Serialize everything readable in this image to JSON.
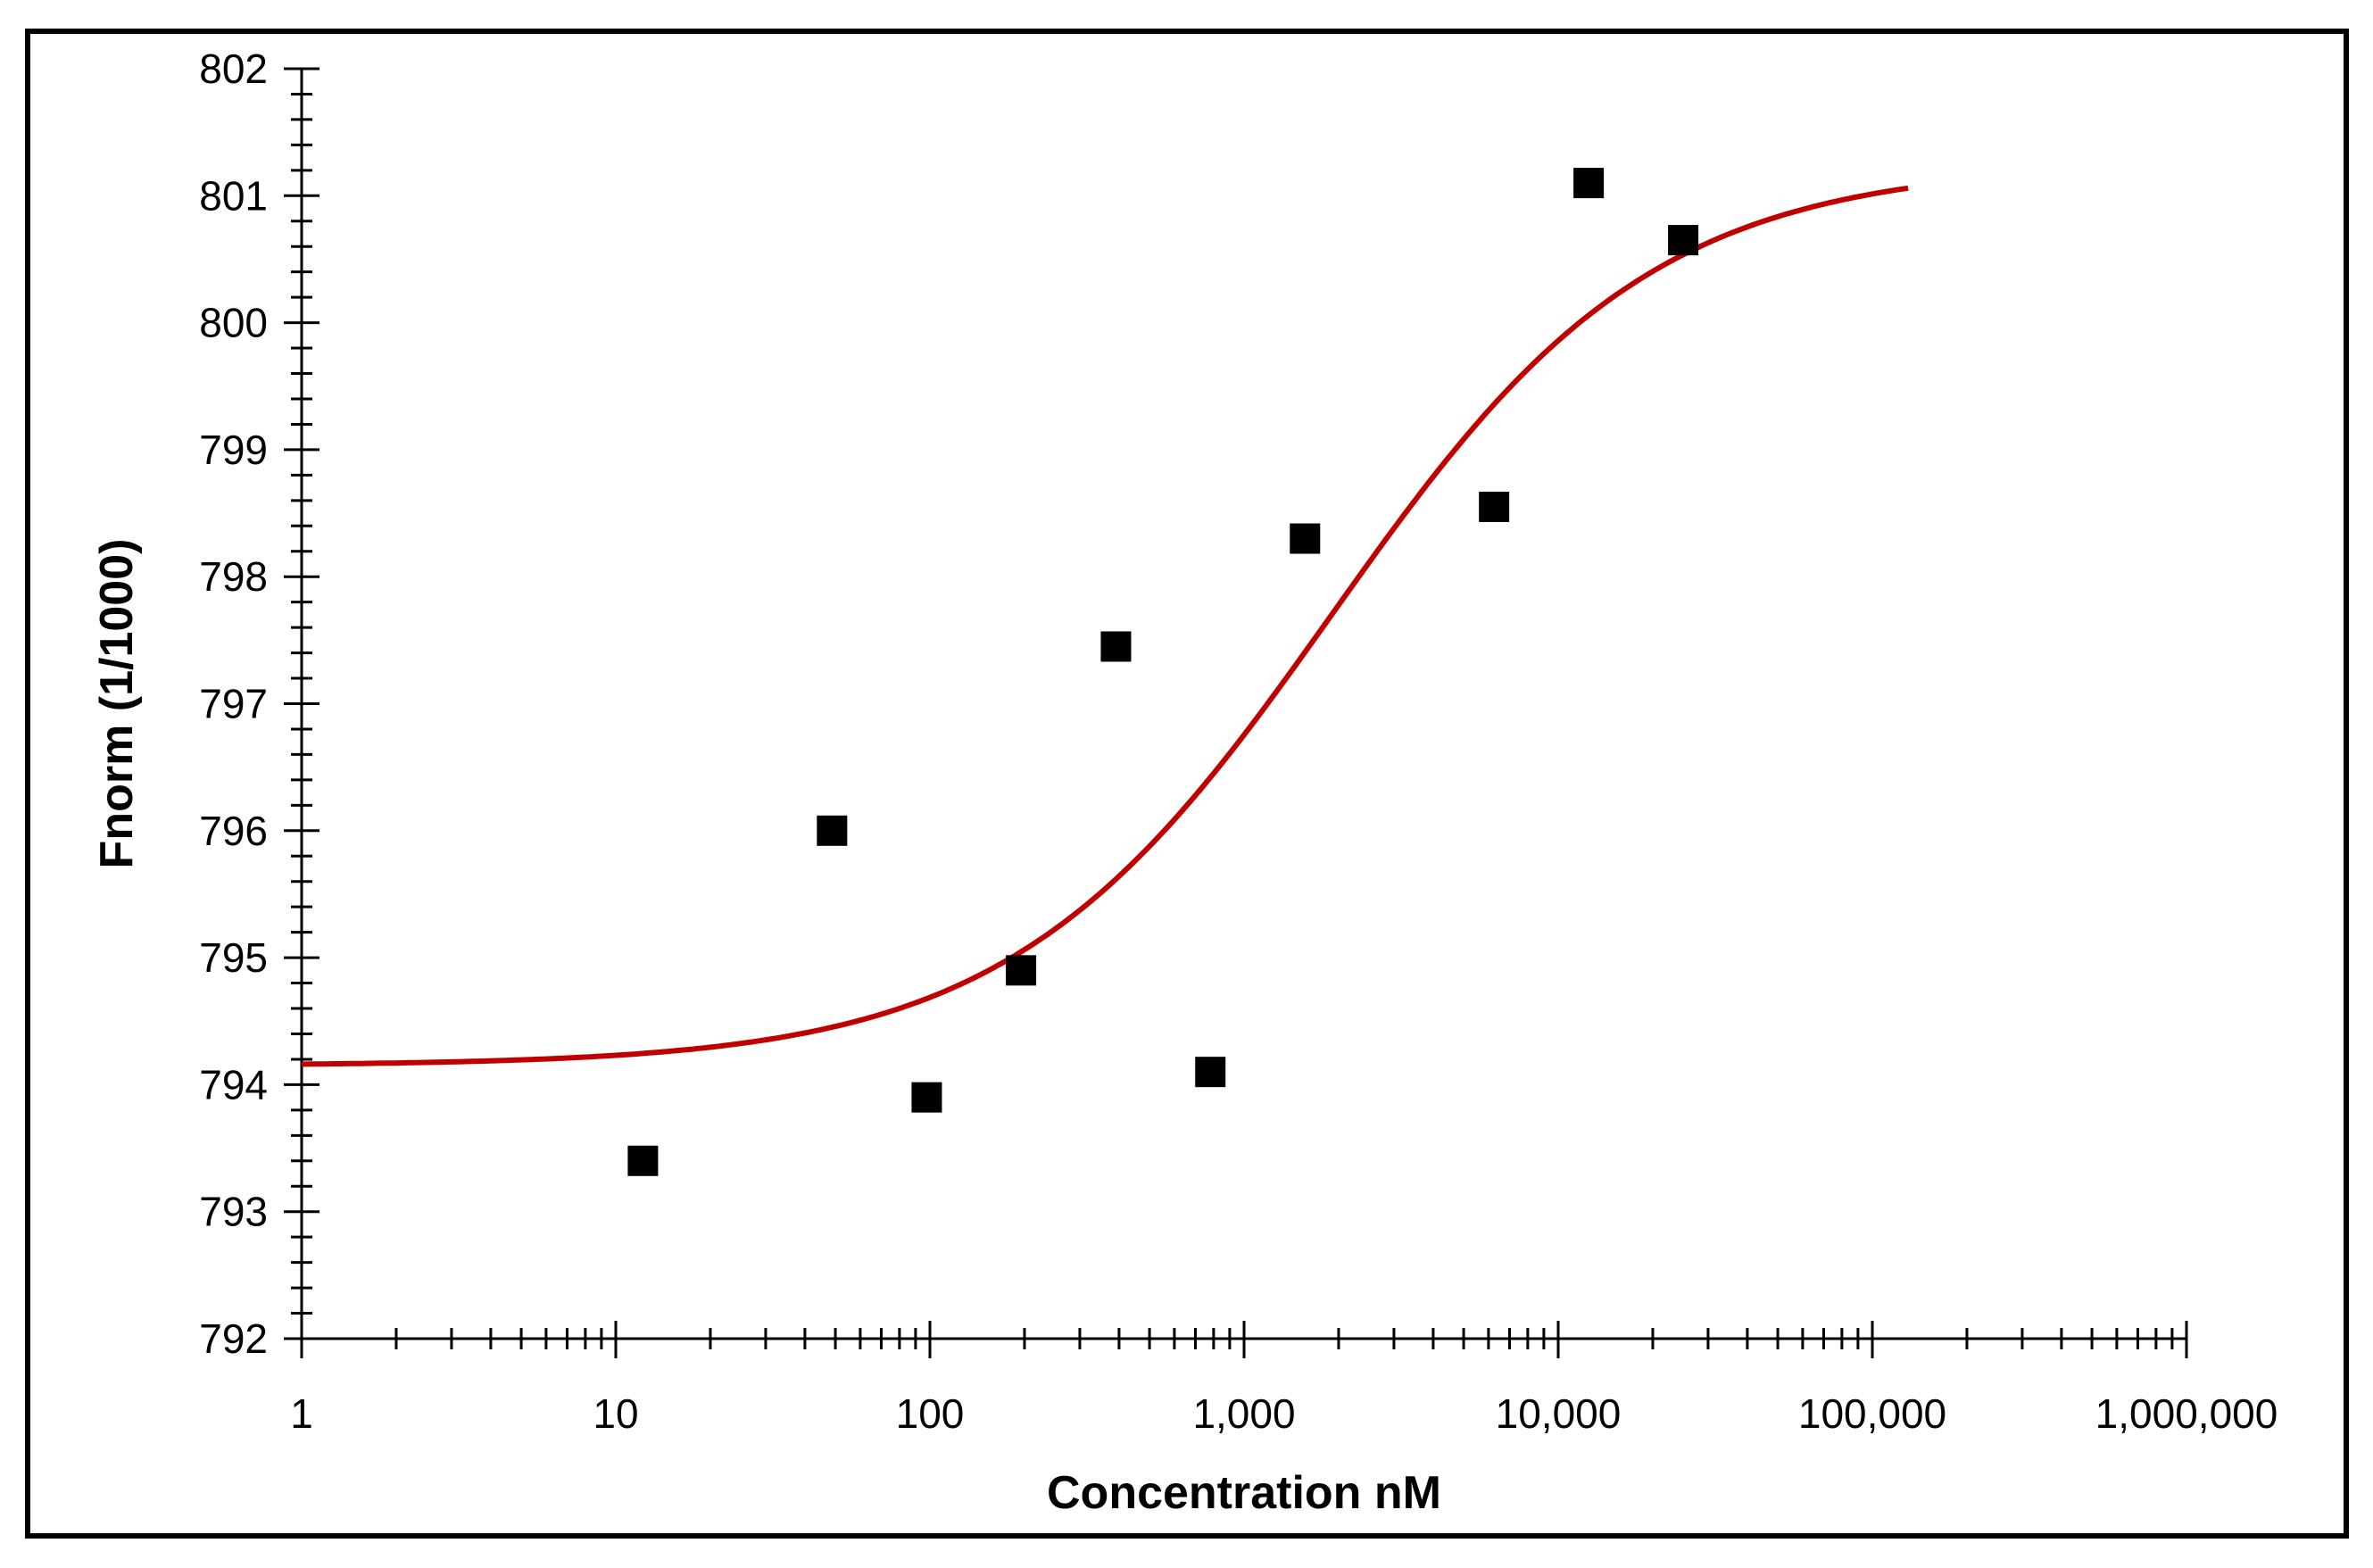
{
  "chart_data": {
    "type": "scatter",
    "title": "",
    "xlabel": "Concentration nM",
    "ylabel": "Fnorm (1/1000)",
    "x_scale": "log",
    "xlim": [
      1,
      1000000
    ],
    "ylim": [
      792,
      802
    ],
    "x_ticks": [
      1,
      10,
      100,
      1000,
      10000,
      100000,
      1000000
    ],
    "x_tick_labels": [
      "1",
      "10",
      "100",
      "1,000",
      "10,000",
      "100,000",
      "1,000,000"
    ],
    "y_ticks": [
      792,
      793,
      794,
      795,
      796,
      797,
      798,
      799,
      800,
      801,
      802
    ],
    "y_tick_labels": [
      "792",
      "793",
      "794",
      "795",
      "796",
      "797",
      "798",
      "799",
      "800",
      "801",
      "802"
    ],
    "points": [
      {
        "x": 12.2,
        "y": 793.4
      },
      {
        "x": 48.8,
        "y": 796.0
      },
      {
        "x": 97.7,
        "y": 793.9
      },
      {
        "x": 195,
        "y": 794.9
      },
      {
        "x": 391,
        "y": 797.45
      },
      {
        "x": 781,
        "y": 794.1
      },
      {
        "x": 1563,
        "y": 798.3
      },
      {
        "x": 6250,
        "y": 798.55
      },
      {
        "x": 12500,
        "y": 801.1
      },
      {
        "x": 25000,
        "y": 800.65
      }
    ],
    "fit": {
      "model": "sigmoid",
      "bottom": 794.15,
      "top": 801.25,
      "ec50": 1900,
      "hill": 0.85,
      "x_range": [
        1,
        130000
      ],
      "color": "#C00000"
    },
    "marker_color": "#000000",
    "grid": false,
    "legend": "none"
  }
}
